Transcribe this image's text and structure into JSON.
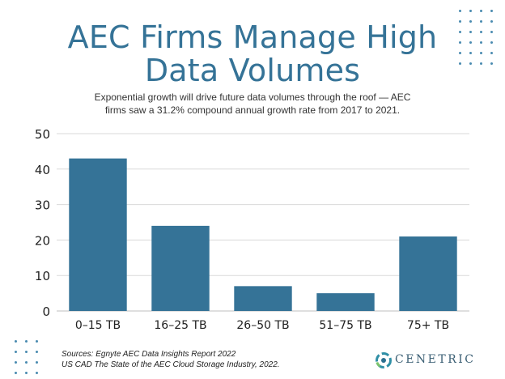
{
  "title_lines": [
    "AEC Firms Manage High",
    "Data Volumes"
  ],
  "subtitle_lines": [
    "Exponential growth will drive future data volumes through the roof — AEC",
    "firms saw a 31.2% compound annual growth rate  from 2017 to 2021."
  ],
  "sources_lines": [
    "Sources:  Egnyte AEC Data Insights Report 2022",
    "US CAD The State of the AEC Cloud Storage Industry, 2022."
  ],
  "logo": {
    "text": "CENETRIC",
    "icon": "cenetric-ring-logo-icon"
  },
  "colors": {
    "accent": "#357397",
    "bar": "#357397",
    "grid": "#d9d9d9"
  },
  "chart_data": {
    "type": "bar",
    "categories": [
      "0–15 TB",
      "16–25 TB",
      "26–50 TB",
      "51–75 TB",
      "75+ TB"
    ],
    "values": [
      43,
      24,
      7,
      5,
      21
    ],
    "ylim": [
      0,
      50
    ],
    "yticks": [
      0,
      10,
      20,
      30,
      40,
      50
    ],
    "grid": true,
    "legend": "none"
  }
}
